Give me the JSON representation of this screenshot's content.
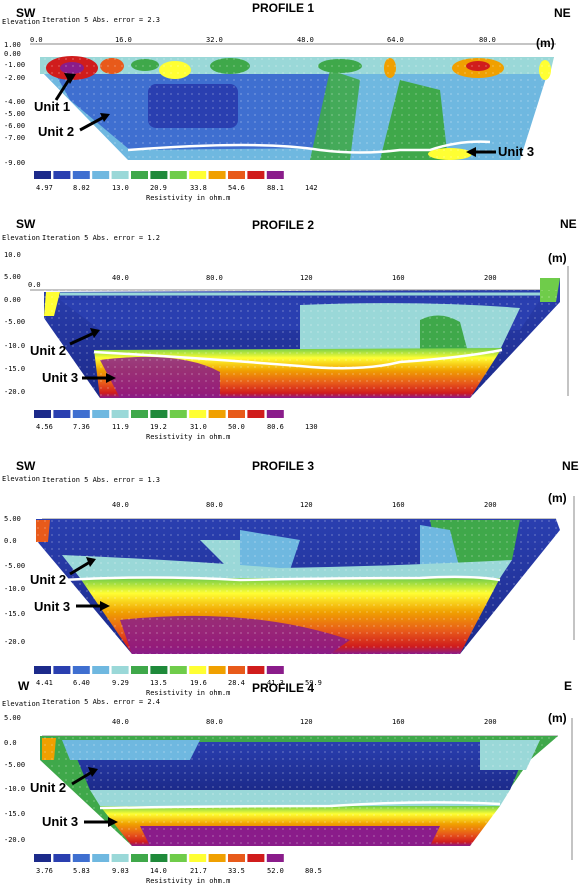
{
  "profiles": [
    {
      "title": "PROFILE 1",
      "left_dir": "SW",
      "right_dir": "NE",
      "iteration_text": "Iteration 5 Abs. error = 2.3",
      "elevation_label": "Elevation",
      "unit_m": "(m)",
      "x_ticks": [
        "0.0",
        "16.0",
        "32.0",
        "48.0",
        "64.0",
        "80.0"
      ],
      "y_ticks": [
        "1.00",
        "0.00",
        "-1.00",
        "-2.00",
        "-4.00",
        "-5.00",
        "-6.00",
        "-7.00",
        "-9.00"
      ],
      "unit_labels": [
        "Unit 1",
        "Unit 2",
        "Unit 3"
      ],
      "scale_values": [
        "4.97",
        "8.02",
        "13.0",
        "20.9",
        "33.8",
        "54.6",
        "88.1",
        "142"
      ],
      "scale_caption": "Resistivity in ohm.m"
    },
    {
      "title": "PROFILE 2",
      "left_dir": "SW",
      "right_dir": "NE",
      "iteration_text": "Iteration 5 Abs. error = 1.2",
      "elevation_label": "Elevation",
      "unit_m": "(m)",
      "x_ticks": [
        "0.0",
        "40.0",
        "80.0",
        "120",
        "160",
        "200"
      ],
      "y_ticks": [
        "10.0",
        "5.00",
        "0.00",
        "-5.00",
        "-10.0",
        "-15.0",
        "-20.0"
      ],
      "unit_labels": [
        "Unit 2",
        "Unit 3"
      ],
      "scale_values": [
        "4.56",
        "7.36",
        "11.9",
        "19.2",
        "31.0",
        "50.0",
        "80.6",
        "130"
      ],
      "scale_caption": "Resistivity in ohm.m"
    },
    {
      "title": "PROFILE 3",
      "left_dir": "SW",
      "right_dir": "NE",
      "iteration_text": "Iteration 5 Abs. error = 1.3",
      "elevation_label": "Elevation",
      "unit_m": "(m)",
      "x_ticks": [
        "40.0",
        "80.0",
        "120",
        "160",
        "200"
      ],
      "y_ticks": [
        "5.00",
        "0.0",
        "-5.00",
        "-10.0",
        "-15.0",
        "-20.0"
      ],
      "unit_labels": [
        "Unit 2",
        "Unit 3"
      ],
      "scale_values": [
        "4.41",
        "6.40",
        "9.29",
        "13.5",
        "19.6",
        "28.4",
        "41.3",
        "59.9"
      ],
      "scale_caption": "Resistivity in ohm.m"
    },
    {
      "title": "PROFILE 4",
      "left_dir": "W",
      "right_dir": "E",
      "iteration_text": "Iteration 5 Abs. error = 2.4",
      "elevation_label": "Elevation",
      "unit_m": "(m)",
      "x_ticks": [
        "40.0",
        "80.0",
        "120",
        "160",
        "200"
      ],
      "y_ticks": [
        "5.00",
        "0.0",
        "-5.00",
        "-10.0",
        "-15.0",
        "-20.0"
      ],
      "unit_labels": [
        "Unit 2",
        "Unit 3"
      ],
      "scale_values": [
        "3.76",
        "5.83",
        "9.03",
        "14.0",
        "21.7",
        "33.5",
        "52.0",
        "80.5"
      ],
      "scale_caption": "Resistivity in ohm.m"
    }
  ],
  "colors": {
    "scale": [
      "#1c2a8a",
      "#2a3fb0",
      "#3f6fd0",
      "#6fb8e0",
      "#9ad8d8",
      "#3fa84a",
      "#1f8a3a",
      "#6fcc4a",
      "#ffff33",
      "#f0a000",
      "#e85a1a",
      "#d01c1c",
      "#8a1c8a"
    ],
    "boundary": "#ffffff",
    "arrow": "#000000"
  }
}
